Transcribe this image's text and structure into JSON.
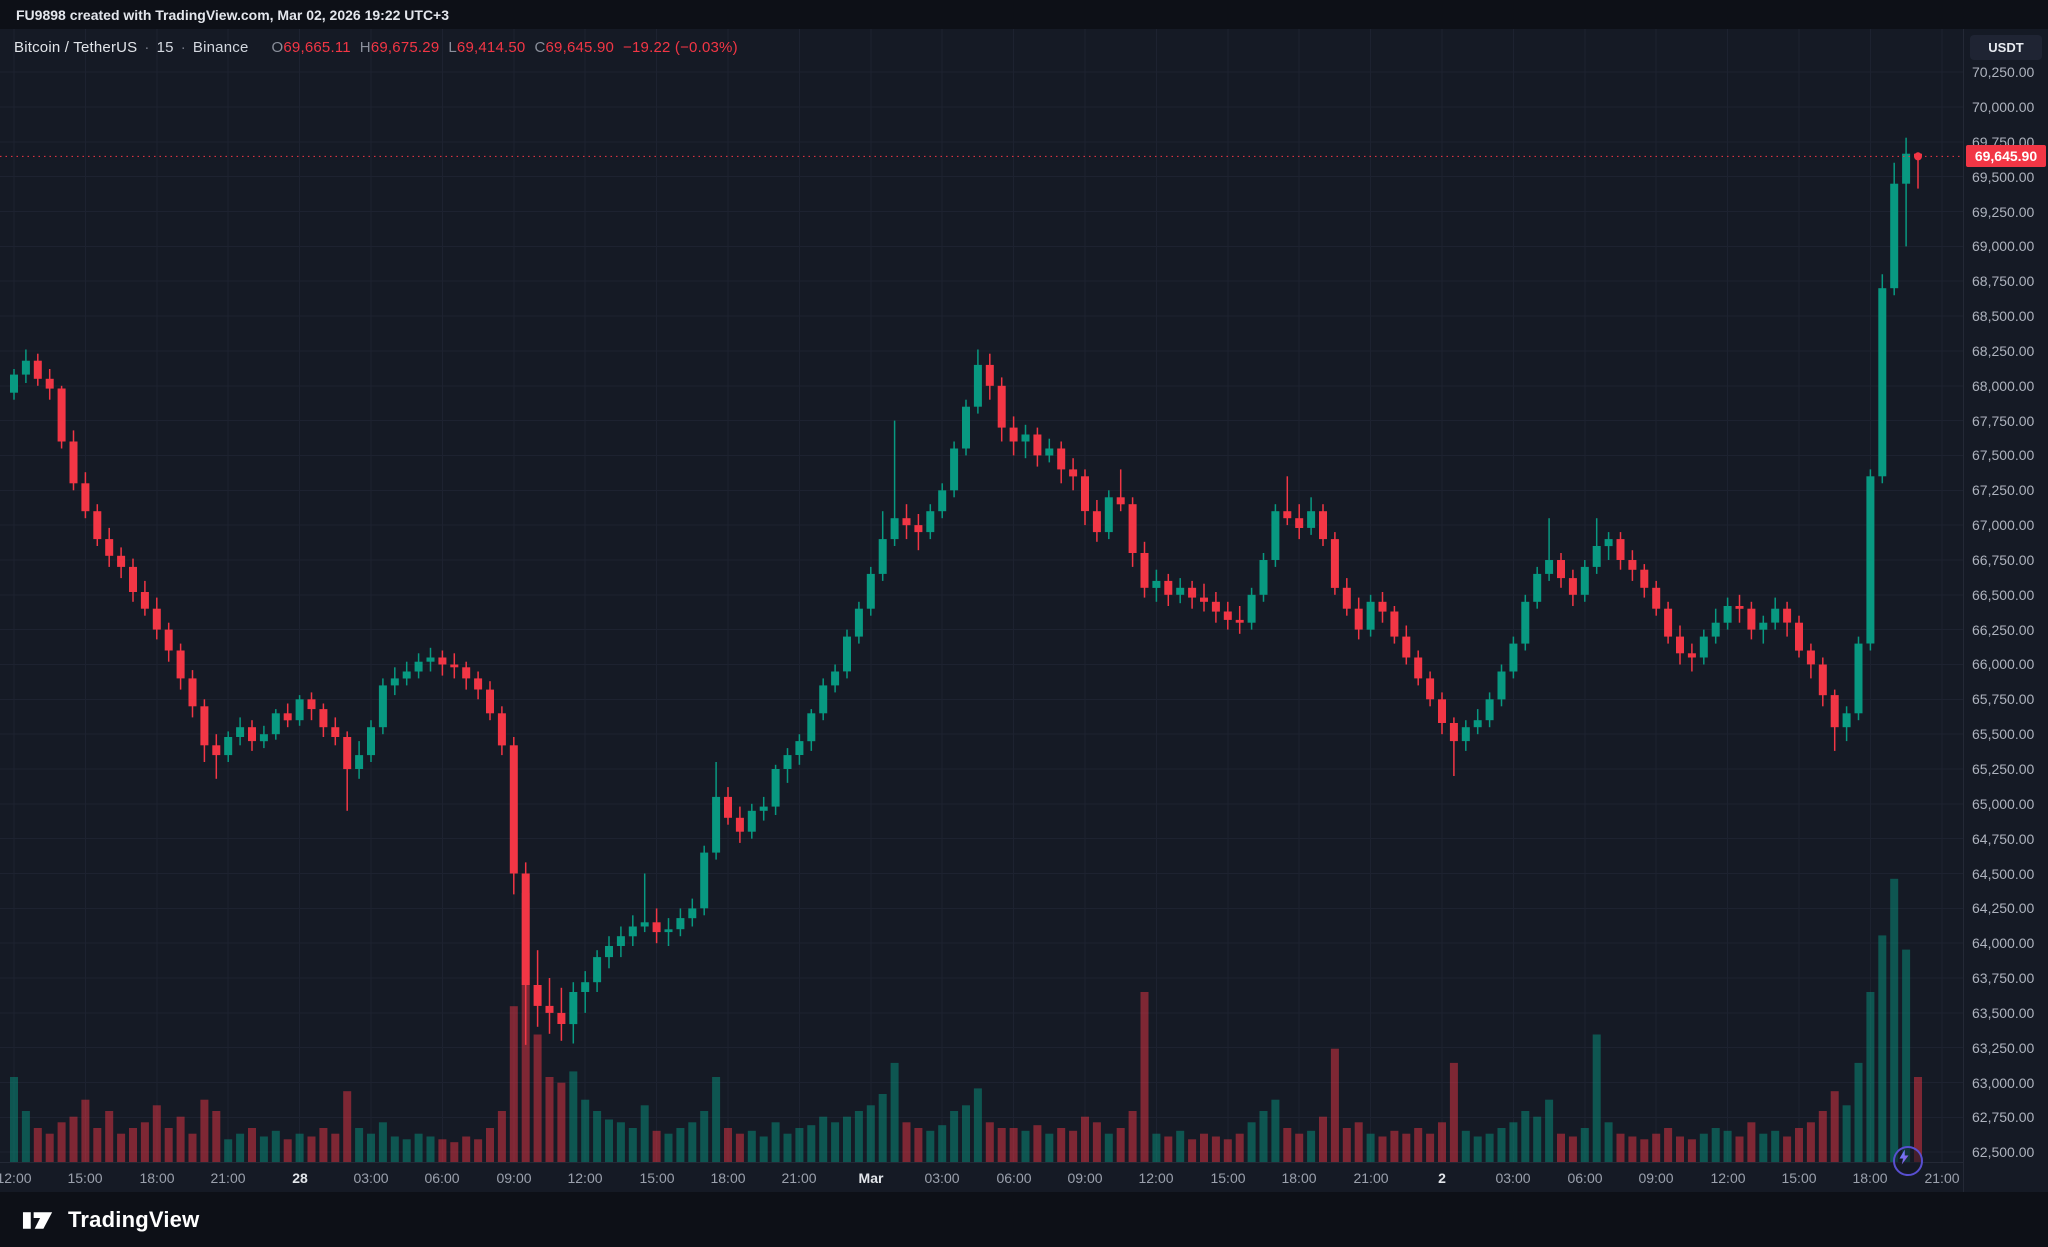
{
  "topbar": {
    "title": "FU9898 created with TradingView.com, Mar 02, 2026 19:22 UTC+3"
  },
  "legend": {
    "symbol": "Bitcoin / TetherUS",
    "sep": "·",
    "interval": "15",
    "exchange": "Binance",
    "ohlc": {
      "o_label": "O",
      "o": "69,665.11",
      "h_label": "H",
      "h": "69,675.29",
      "l_label": "L",
      "l": "69,414.50",
      "c_label": "C",
      "c": "69,645.90",
      "change": "−19.22 (−0.03%)"
    }
  },
  "price_scale": {
    "currency_button": "USDT",
    "last_price": "69,645.90"
  },
  "footer": {
    "logo_text": "TradingView"
  },
  "colors": {
    "up": "#089981",
    "down": "#f23645",
    "vol_up": "rgba(8,153,129,0.48)",
    "vol_down": "rgba(242,54,69,0.48)",
    "accent_red": "#f23645",
    "chart_bg": "#151a25",
    "outer_bg": "#0d1017",
    "grid": "#1d2230",
    "axis_text": "#aeb3be",
    "bright_text": "#e2e5ea"
  },
  "chart_data": {
    "type": "candlestick",
    "title": "Bitcoin / TetherUS · 15 · Binance",
    "interval_minutes": 15,
    "quote_currency": "USDT",
    "last_price": 69645.9,
    "y_domain": [
      62430,
      70560
    ],
    "volume_max_frac": 0.25,
    "y_ticks": [
      70250,
      70000,
      69750,
      69500,
      69250,
      69000,
      68750,
      68500,
      68250,
      68000,
      67750,
      67500,
      67250,
      67000,
      66750,
      66500,
      66250,
      66000,
      65750,
      65500,
      65250,
      65000,
      64750,
      64500,
      64250,
      64000,
      63750,
      63500,
      63250,
      63000,
      62750,
      62500
    ],
    "x_labels": [
      {
        "i": 0,
        "t": "12:00"
      },
      {
        "i": 6,
        "t": "15:00"
      },
      {
        "i": 12,
        "t": "18:00"
      },
      {
        "i": 18,
        "t": "21:00"
      },
      {
        "i": 24,
        "t": "28",
        "major": true
      },
      {
        "i": 30,
        "t": "03:00"
      },
      {
        "i": 36,
        "t": "06:00"
      },
      {
        "i": 42,
        "t": "09:00"
      },
      {
        "i": 48,
        "t": "12:00"
      },
      {
        "i": 54,
        "t": "15:00"
      },
      {
        "i": 60,
        "t": "18:00"
      },
      {
        "i": 66,
        "t": "21:00"
      },
      {
        "i": 72,
        "t": "Mar",
        "major": true
      },
      {
        "i": 78,
        "t": "03:00"
      },
      {
        "i": 84,
        "t": "06:00"
      },
      {
        "i": 90,
        "t": "09:00"
      },
      {
        "i": 96,
        "t": "12:00"
      },
      {
        "i": 102,
        "t": "15:00"
      },
      {
        "i": 108,
        "t": "18:00"
      },
      {
        "i": 114,
        "t": "21:00"
      },
      {
        "i": 120,
        "t": "2",
        "major": true
      },
      {
        "i": 126,
        "t": "03:00"
      },
      {
        "i": 132,
        "t": "06:00"
      },
      {
        "i": 138,
        "t": "09:00"
      },
      {
        "i": 144,
        "t": "12:00"
      },
      {
        "i": 150,
        "t": "15:00"
      },
      {
        "i": 156,
        "t": "18:00"
      },
      {
        "i": 162,
        "t": "21:00"
      }
    ],
    "candles": [
      [
        67950,
        68120,
        67900,
        68080
      ],
      [
        68080,
        68260,
        68020,
        68180
      ],
      [
        68180,
        68230,
        68000,
        68050
      ],
      [
        68050,
        68120,
        67900,
        67980
      ],
      [
        67980,
        68000,
        67550,
        67600
      ],
      [
        67600,
        67680,
        67250,
        67300
      ],
      [
        67300,
        67380,
        67050,
        67100
      ],
      [
        67100,
        67150,
        66850,
        66900
      ],
      [
        66900,
        66980,
        66700,
        66780
      ],
      [
        66780,
        66840,
        66620,
        66700
      ],
      [
        66700,
        66760,
        66450,
        66520
      ],
      [
        66520,
        66600,
        66350,
        66400
      ],
      [
        66400,
        66480,
        66180,
        66250
      ],
      [
        66250,
        66300,
        66020,
        66100
      ],
      [
        66100,
        66150,
        65820,
        65900
      ],
      [
        65900,
        65960,
        65620,
        65700
      ],
      [
        65700,
        65750,
        65300,
        65420
      ],
      [
        65420,
        65500,
        65180,
        65350
      ],
      [
        65350,
        65520,
        65300,
        65480
      ],
      [
        65480,
        65620,
        65420,
        65550
      ],
      [
        65550,
        65600,
        65380,
        65450
      ],
      [
        65450,
        65560,
        65400,
        65500
      ],
      [
        65500,
        65680,
        65460,
        65650
      ],
      [
        65650,
        65720,
        65550,
        65600
      ],
      [
        65600,
        65780,
        65560,
        65750
      ],
      [
        65750,
        65800,
        65600,
        65680
      ],
      [
        65680,
        65720,
        65480,
        65550
      ],
      [
        65550,
        65620,
        65420,
        65480
      ],
      [
        65480,
        65520,
        64950,
        65250
      ],
      [
        65250,
        65450,
        65180,
        65350
      ],
      [
        65350,
        65600,
        65300,
        65550
      ],
      [
        65550,
        65900,
        65500,
        65850
      ],
      [
        65850,
        65980,
        65780,
        65900
      ],
      [
        65900,
        66020,
        65850,
        65950
      ],
      [
        65950,
        66080,
        65900,
        66020
      ],
      [
        66020,
        66120,
        65950,
        66050
      ],
      [
        66050,
        66100,
        65920,
        66000
      ],
      [
        66000,
        66080,
        65900,
        65980
      ],
      [
        65980,
        66020,
        65820,
        65900
      ],
      [
        65900,
        65950,
        65750,
        65820
      ],
      [
        65820,
        65880,
        65600,
        65650
      ],
      [
        65650,
        65700,
        65350,
        65420
      ],
      [
        65420,
        65480,
        64350,
        64500
      ],
      [
        64500,
        64580,
        63270,
        63700
      ],
      [
        63700,
        63950,
        63400,
        63550
      ],
      [
        63550,
        63750,
        63350,
        63500
      ],
      [
        63500,
        63680,
        63300,
        63420
      ],
      [
        63420,
        63720,
        63280,
        63650
      ],
      [
        63650,
        63800,
        63500,
        63720
      ],
      [
        63720,
        63950,
        63650,
        63900
      ],
      [
        63900,
        64050,
        63820,
        63980
      ],
      [
        63980,
        64120,
        63900,
        64050
      ],
      [
        64050,
        64200,
        63980,
        64120
      ],
      [
        64120,
        64500,
        64080,
        64150
      ],
      [
        64150,
        64250,
        64000,
        64080
      ],
      [
        64080,
        64180,
        63980,
        64100
      ],
      [
        64100,
        64250,
        64050,
        64180
      ],
      [
        64180,
        64320,
        64120,
        64250
      ],
      [
        64250,
        64700,
        64200,
        64650
      ],
      [
        64650,
        65300,
        64600,
        65050
      ],
      [
        65050,
        65120,
        64850,
        64900
      ],
      [
        64900,
        64980,
        64720,
        64800
      ],
      [
        64800,
        65000,
        64750,
        64950
      ],
      [
        64950,
        65050,
        64880,
        64980
      ],
      [
        64980,
        65280,
        64920,
        65250
      ],
      [
        65250,
        65400,
        65150,
        65350
      ],
      [
        65350,
        65500,
        65280,
        65450
      ],
      [
        65450,
        65680,
        65380,
        65650
      ],
      [
        65650,
        65900,
        65600,
        65850
      ],
      [
        65850,
        66000,
        65800,
        65950
      ],
      [
        65950,
        66250,
        65900,
        66200
      ],
      [
        66200,
        66450,
        66150,
        66400
      ],
      [
        66400,
        66700,
        66350,
        66650
      ],
      [
        66650,
        67100,
        66600,
        66900
      ],
      [
        66900,
        67750,
        66850,
        67050
      ],
      [
        67050,
        67150,
        66900,
        67000
      ],
      [
        67000,
        67080,
        66820,
        66950
      ],
      [
        66950,
        67150,
        66900,
        67100
      ],
      [
        67100,
        67300,
        67050,
        67250
      ],
      [
        67250,
        67600,
        67200,
        67550
      ],
      [
        67550,
        67900,
        67500,
        67850
      ],
      [
        67850,
        68260,
        67800,
        68150
      ],
      [
        68150,
        68230,
        67900,
        68000
      ],
      [
        68000,
        68060,
        67600,
        67700
      ],
      [
        67700,
        67780,
        67500,
        67600
      ],
      [
        67600,
        67720,
        67480,
        67650
      ],
      [
        67650,
        67700,
        67420,
        67500
      ],
      [
        67500,
        67620,
        67450,
        67550
      ],
      [
        67550,
        67600,
        67300,
        67400
      ],
      [
        67400,
        67480,
        67250,
        67350
      ],
      [
        67350,
        67400,
        67000,
        67100
      ],
      [
        67100,
        67180,
        66880,
        66950
      ],
      [
        66950,
        67250,
        66900,
        67200
      ],
      [
        67200,
        67400,
        67100,
        67150
      ],
      [
        67150,
        67200,
        66700,
        66800
      ],
      [
        66800,
        66880,
        66480,
        66550
      ],
      [
        66550,
        66680,
        66450,
        66600
      ],
      [
        66600,
        66650,
        66420,
        66500
      ],
      [
        66500,
        66620,
        66440,
        66550
      ],
      [
        66550,
        66600,
        66400,
        66480
      ],
      [
        66480,
        66580,
        66380,
        66450
      ],
      [
        66450,
        66520,
        66300,
        66380
      ],
      [
        66380,
        66450,
        66250,
        66320
      ],
      [
        66320,
        66420,
        66220,
        66300
      ],
      [
        66300,
        66550,
        66250,
        66500
      ],
      [
        66500,
        66800,
        66450,
        66750
      ],
      [
        66750,
        67150,
        66700,
        67100
      ],
      [
        67100,
        67350,
        67000,
        67050
      ],
      [
        67050,
        67150,
        66900,
        66980
      ],
      [
        66980,
        67200,
        66930,
        67100
      ],
      [
        67100,
        67150,
        66850,
        66900
      ],
      [
        66900,
        66950,
        66500,
        66550
      ],
      [
        66550,
        66620,
        66350,
        66400
      ],
      [
        66400,
        66480,
        66180,
        66250
      ],
      [
        66250,
        66500,
        66200,
        66450
      ],
      [
        66450,
        66520,
        66300,
        66380
      ],
      [
        66380,
        66420,
        66150,
        66200
      ],
      [
        66200,
        66280,
        66000,
        66050
      ],
      [
        66050,
        66100,
        65850,
        65900
      ],
      [
        65900,
        65950,
        65700,
        65750
      ],
      [
        65750,
        65800,
        65500,
        65580
      ],
      [
        65580,
        65620,
        65200,
        65450
      ],
      [
        65450,
        65600,
        65380,
        65550
      ],
      [
        65550,
        65680,
        65500,
        65600
      ],
      [
        65600,
        65800,
        65550,
        65750
      ],
      [
        65750,
        66000,
        65700,
        65950
      ],
      [
        65950,
        66200,
        65900,
        66150
      ],
      [
        66150,
        66500,
        66100,
        66450
      ],
      [
        66450,
        66700,
        66400,
        66650
      ],
      [
        66650,
        67050,
        66600,
        66750
      ],
      [
        66750,
        66800,
        66550,
        66620
      ],
      [
        66620,
        66680,
        66420,
        66500
      ],
      [
        66500,
        66750,
        66450,
        66700
      ],
      [
        66700,
        67050,
        66650,
        66850
      ],
      [
        66850,
        66950,
        66750,
        66900
      ],
      [
        66900,
        66950,
        66680,
        66750
      ],
      [
        66750,
        66820,
        66600,
        66680
      ],
      [
        66680,
        66720,
        66480,
        66550
      ],
      [
        66550,
        66600,
        66350,
        66400
      ],
      [
        66400,
        66450,
        66150,
        66200
      ],
      [
        66200,
        66280,
        66000,
        66080
      ],
      [
        66080,
        66150,
        65950,
        66050
      ],
      [
        66050,
        66250,
        66000,
        66200
      ],
      [
        66200,
        66400,
        66150,
        66300
      ],
      [
        66300,
        66480,
        66250,
        66420
      ],
      [
        66420,
        66500,
        66300,
        66400
      ],
      [
        66400,
        66450,
        66180,
        66250
      ],
      [
        66250,
        66350,
        66150,
        66300
      ],
      [
        66300,
        66480,
        66250,
        66400
      ],
      [
        66400,
        66450,
        66200,
        66300
      ],
      [
        66300,
        66350,
        66050,
        66100
      ],
      [
        66100,
        66150,
        65900,
        66000
      ],
      [
        66000,
        66050,
        65700,
        65780
      ],
      [
        65780,
        65820,
        65380,
        65550
      ],
      [
        65550,
        65700,
        65450,
        65650
      ],
      [
        65650,
        66200,
        65600,
        66150
      ],
      [
        66150,
        67400,
        66100,
        67350
      ],
      [
        67350,
        68800,
        67300,
        68700
      ],
      [
        68700,
        69600,
        68650,
        69450
      ],
      [
        69450,
        69780,
        69000,
        69665
      ],
      [
        69665.11,
        69675.29,
        69414.5,
        69645.9
      ]
    ],
    "volumes": [
      30,
      18,
      12,
      10,
      14,
      16,
      22,
      12,
      18,
      10,
      12,
      14,
      20,
      12,
      16,
      10,
      22,
      18,
      8,
      10,
      12,
      9,
      11,
      8,
      10,
      9,
      12,
      10,
      25,
      12,
      10,
      14,
      9,
      8,
      10,
      9,
      8,
      7,
      9,
      8,
      12,
      18,
      55,
      95,
      45,
      30,
      28,
      32,
      22,
      18,
      15,
      14,
      12,
      20,
      11,
      10,
      12,
      14,
      18,
      30,
      12,
      10,
      11,
      9,
      14,
      10,
      12,
      13,
      16,
      14,
      16,
      18,
      20,
      24,
      35,
      14,
      12,
      11,
      13,
      18,
      20,
      26,
      14,
      12,
      12,
      11,
      13,
      10,
      12,
      11,
      16,
      14,
      10,
      12,
      18,
      60,
      10,
      9,
      11,
      8,
      10,
      9,
      8,
      10,
      14,
      18,
      22,
      12,
      10,
      11,
      16,
      40,
      12,
      14,
      10,
      9,
      11,
      10,
      12,
      10,
      14,
      35,
      11,
      9,
      10,
      12,
      14,
      18,
      16,
      22,
      10,
      9,
      12,
      45,
      14,
      10,
      9,
      8,
      10,
      12,
      9,
      8,
      10,
      12,
      11,
      9,
      14,
      10,
      11,
      9,
      12,
      14,
      18,
      25,
      20,
      35,
      60,
      80,
      100,
      75,
      30
    ]
  }
}
